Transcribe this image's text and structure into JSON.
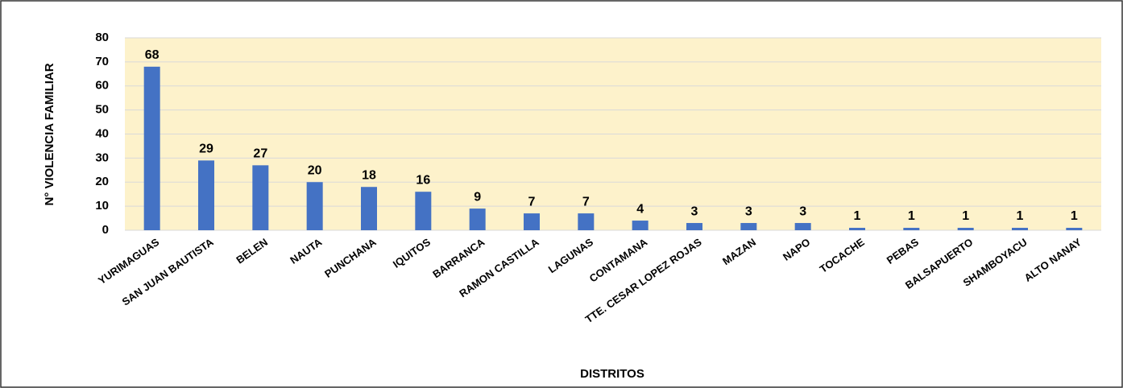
{
  "chart_data": {
    "type": "bar",
    "categories": [
      "YURIMAGUAS",
      "SAN JUAN BAUTISTA",
      "BELEN",
      "NAUTA",
      "PUNCHANA",
      "IQUITOS",
      "BARRANCA",
      "RAMON CASTILLA",
      "LAGUNAS",
      "CONTAMANA",
      "TTE. CESAR LOPEZ ROJAS",
      "MAZAN",
      "NAPO",
      "TOCACHE",
      "PEBAS",
      "BALSAPUERTO",
      "SHAMBOYACU",
      "ALTO NANAY"
    ],
    "values": [
      68,
      29,
      27,
      20,
      18,
      16,
      9,
      7,
      7,
      4,
      3,
      3,
      3,
      1,
      1,
      1,
      1,
      1
    ],
    "color": "#4472c4",
    "x_label": "DISTRITOS",
    "y_label": "N° VIOLENCIA FAMILIAR",
    "ylim": [
      0,
      80
    ],
    "yticks": [
      0,
      10,
      20,
      30,
      40,
      50,
      60,
      70,
      80
    ],
    "grid": true
  }
}
